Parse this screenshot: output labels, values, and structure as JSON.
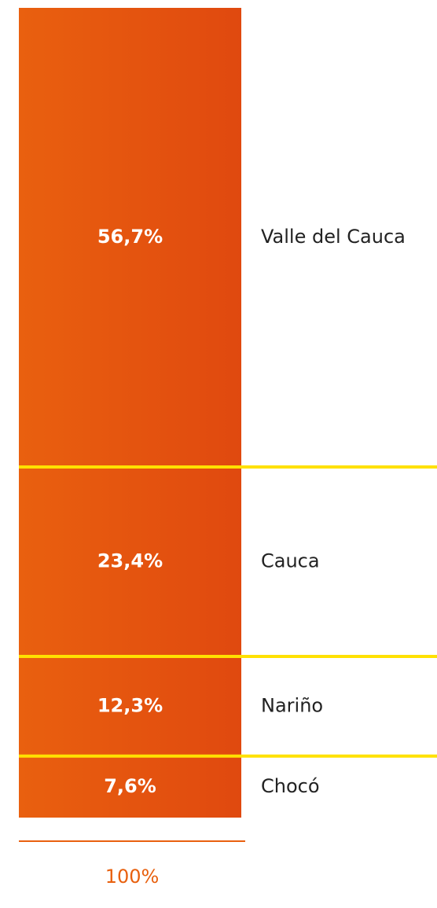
{
  "chart_data": {
    "type": "stacked-bar",
    "categories": [
      "Valle del Cauca",
      "Cauca",
      "Nariño",
      "Chocó"
    ],
    "values": [
      56.7,
      23.4,
      12.3,
      7.6
    ],
    "value_labels": [
      "56,7%",
      "23,4%",
      "12,3%",
      "7,6%"
    ],
    "ylim": [
      0,
      100
    ],
    "total_label": "100%",
    "color": [
      "#e9600f",
      "#e0490f"
    ],
    "divider_color": "#ffe100"
  }
}
